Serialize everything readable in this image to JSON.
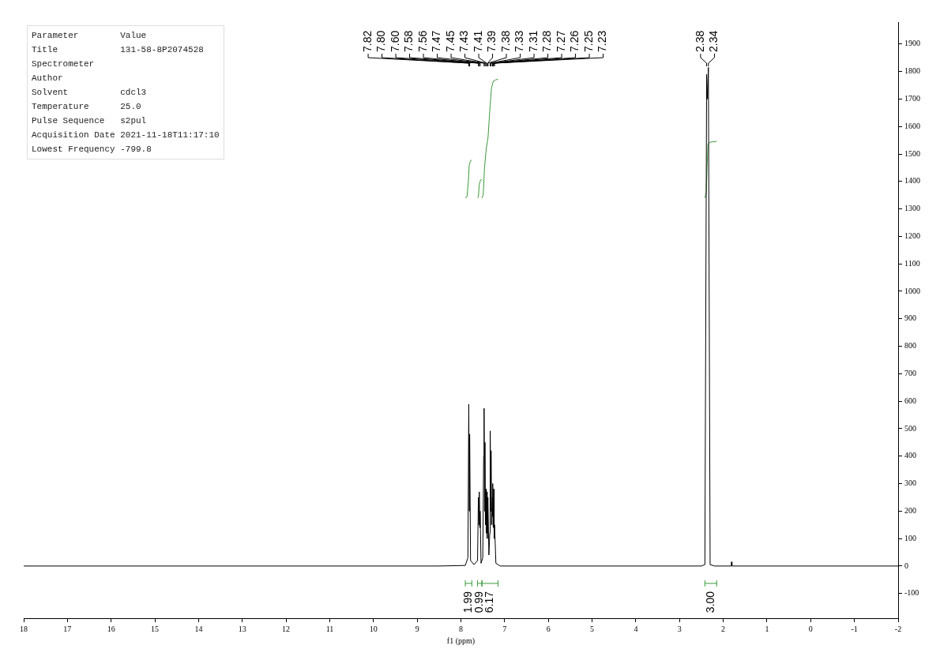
{
  "chart_data": {
    "type": "line",
    "xlabel": "f1 (ppm)",
    "xlim": [
      18,
      -2
    ],
    "xticks": [
      18,
      17,
      16,
      15,
      14,
      13,
      12,
      11,
      10,
      9,
      8,
      7,
      6,
      5,
      4,
      3,
      2,
      1,
      0,
      -1,
      -2
    ],
    "ylim": [
      -190,
      1980
    ],
    "yticks": [
      -100,
      0,
      100,
      200,
      300,
      400,
      500,
      600,
      700,
      800,
      900,
      1000,
      1100,
      1200,
      1300,
      1400,
      1500,
      1600,
      1700,
      1800,
      1900
    ],
    "grid": false,
    "legend": false,
    "series": [
      {
        "color": "#000000",
        "x": [
          18,
          8.5,
          7.9,
          7.84,
          7.82,
          7.81,
          7.8,
          7.78,
          7.7,
          7.62,
          7.6,
          7.59,
          7.58,
          7.57,
          7.56,
          7.54,
          7.5,
          7.48,
          7.47,
          7.46,
          7.45,
          7.44,
          7.43,
          7.42,
          7.41,
          7.4,
          7.39,
          7.385,
          7.38,
          7.36,
          7.34,
          7.33,
          7.32,
          7.31,
          7.3,
          7.28,
          7.275,
          7.27,
          7.265,
          7.26,
          7.255,
          7.25,
          7.24,
          7.23,
          7.2,
          7.1,
          2.5,
          2.42,
          2.38,
          2.36,
          2.34,
          2.3,
          2.2,
          1.82,
          1.81,
          1.8,
          -2
        ],
        "values": [
          0,
          0,
          2,
          30,
          589,
          200,
          480,
          20,
          5,
          20,
          250,
          150,
          270,
          140,
          200,
          10,
          30,
          400,
          574,
          200,
          450,
          150,
          280,
          120,
          270,
          100,
          250,
          120,
          230,
          40,
          120,
          492,
          200,
          420,
          150,
          250,
          180,
          300,
          150,
          200,
          140,
          280,
          100,
          150,
          10,
          0,
          0,
          5,
          1790,
          1700,
          1815,
          5,
          0,
          0,
          15,
          0,
          0
        ]
      },
      {
        "color": "#3a9a3a",
        "x": [
          7.9,
          7.86,
          7.83,
          7.81,
          7.78,
          7.75
        ],
        "values": [
          1340,
          1345,
          1400,
          1460,
          1475,
          1478
        ]
      },
      {
        "color": "#3a9a3a",
        "x": [
          7.62,
          7.6,
          7.58,
          7.55,
          7.52
        ],
        "values": [
          1340,
          1345,
          1390,
          1405,
          1408
        ]
      },
      {
        "color": "#3a9a3a",
        "x": [
          7.52,
          7.49,
          7.46,
          7.42,
          7.38,
          7.33,
          7.3,
          7.26,
          7.2,
          7.15
        ],
        "values": [
          1340,
          1350,
          1450,
          1520,
          1560,
          1680,
          1740,
          1765,
          1770,
          1772
        ]
      },
      {
        "color": "#3a9a3a",
        "x": [
          2.42,
          2.39,
          2.37,
          2.35,
          2.3,
          2.15
        ],
        "values": [
          1340,
          1360,
          1450,
          1535,
          1543,
          1546
        ]
      }
    ],
    "annotations": [
      "Parameter        Value\nTitle            131-58-8P2074528\nSpectrometer\nAuthor\nSolvent          cdcl3\nTemperature      25.0\nPulse Sequence   s2pul\nAcquisition Date 2021-11-18T11:17:10\nLowest Frequency -799.8",
      "7.82",
      "7.80",
      "7.60",
      "7.58",
      "7.56",
      "7.47",
      "7.45",
      "7.43",
      "7.41",
      "7.39",
      "7.38",
      "7.33",
      "7.31",
      "7.28",
      "7.27",
      "7.26",
      "7.25",
      "7.23",
      "2.38",
      "2.34",
      "1.99",
      "0.99",
      "6.17",
      "3.00"
    ]
  }
}
